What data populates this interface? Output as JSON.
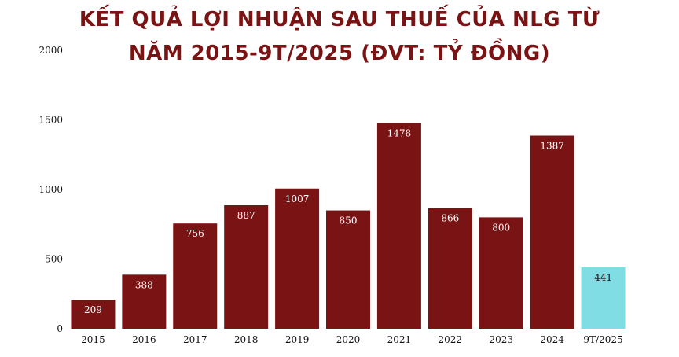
{
  "title_line1": "KẾT QUẢ LỢI NHUẬN SAU THUẾ CỦA NLG TỪ",
  "title_line2": "NĂM 2015-9T/2025 (ĐVT: TỶ ĐỒNG)",
  "colors": {
    "bar": "#7a1414",
    "highlight": "#7fdde3",
    "title": "#7a1414"
  },
  "chart_data": {
    "type": "bar",
    "title": "KẾT QUẢ LỢI NHUẬN SAU THUẾ CỦA NLG TỪ NĂM 2015-9T/2025 (ĐVT: TỶ ĐỒNG)",
    "categories": [
      "2015",
      "2016",
      "2017",
      "2018",
      "2019",
      "2020",
      "2021",
      "2022",
      "2023",
      "2024",
      "9T/2025"
    ],
    "values": [
      209,
      388,
      756,
      887,
      1007,
      850,
      1478,
      866,
      800,
      1387,
      441
    ],
    "highlight_index": 10,
    "xlabel": "",
    "ylabel": "",
    "ylim": [
      0,
      2000
    ],
    "yticks": [
      0,
      500,
      1000,
      1500,
      2000
    ],
    "grid": false,
    "legend": "none"
  }
}
